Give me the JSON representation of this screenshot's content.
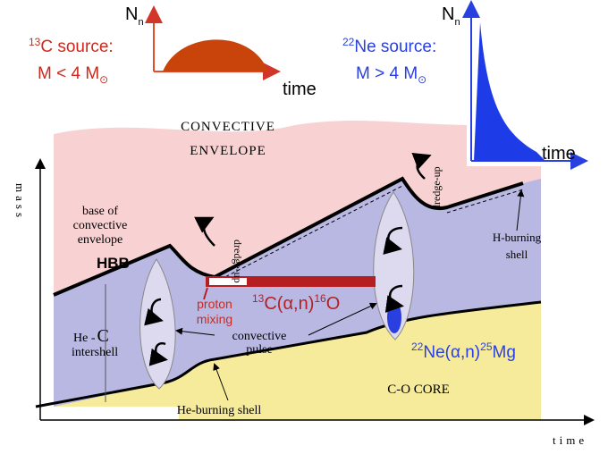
{
  "insets": [
    {
      "ylabel": "N",
      "ylabel_sub": "n",
      "source_sup": "13",
      "source": "C source:",
      "mass": "M < 4 M",
      "mass_sub": "⊙",
      "xlabel": "time"
    },
    {
      "ylabel": "N",
      "ylabel_sub": "n",
      "source_sup": "22",
      "source": "Ne source:",
      "mass": "M > 4 M",
      "mass_sub": "⊙",
      "xlabel": "time"
    }
  ],
  "axes": {
    "y": "mass",
    "x": "time"
  },
  "regions": {
    "envelope": [
      "CONVECTIVE",
      "ENVELOPE"
    ],
    "intershell": [
      "He -",
      "C",
      "intershell"
    ],
    "core": "C-O CORE"
  },
  "labels": {
    "base": [
      "base of",
      "convective",
      "envelope"
    ],
    "hbb": "HBB",
    "dredge_up": [
      "dredge-up",
      "dredge-up"
    ],
    "h_shell": [
      "H-burning",
      "shell"
    ],
    "proton_mixing": [
      "proton",
      "mixing"
    ],
    "pulse": [
      "convective",
      "pulse"
    ],
    "he_shell": "He-burning shell"
  },
  "reactions": [
    {
      "sup1": "13",
      "a": "C(α,n)",
      "sup2": "16",
      "b": "O"
    },
    {
      "sup1": "22",
      "a": "Ne(α,n)",
      "sup2": "25",
      "b": "Mg"
    }
  ]
}
